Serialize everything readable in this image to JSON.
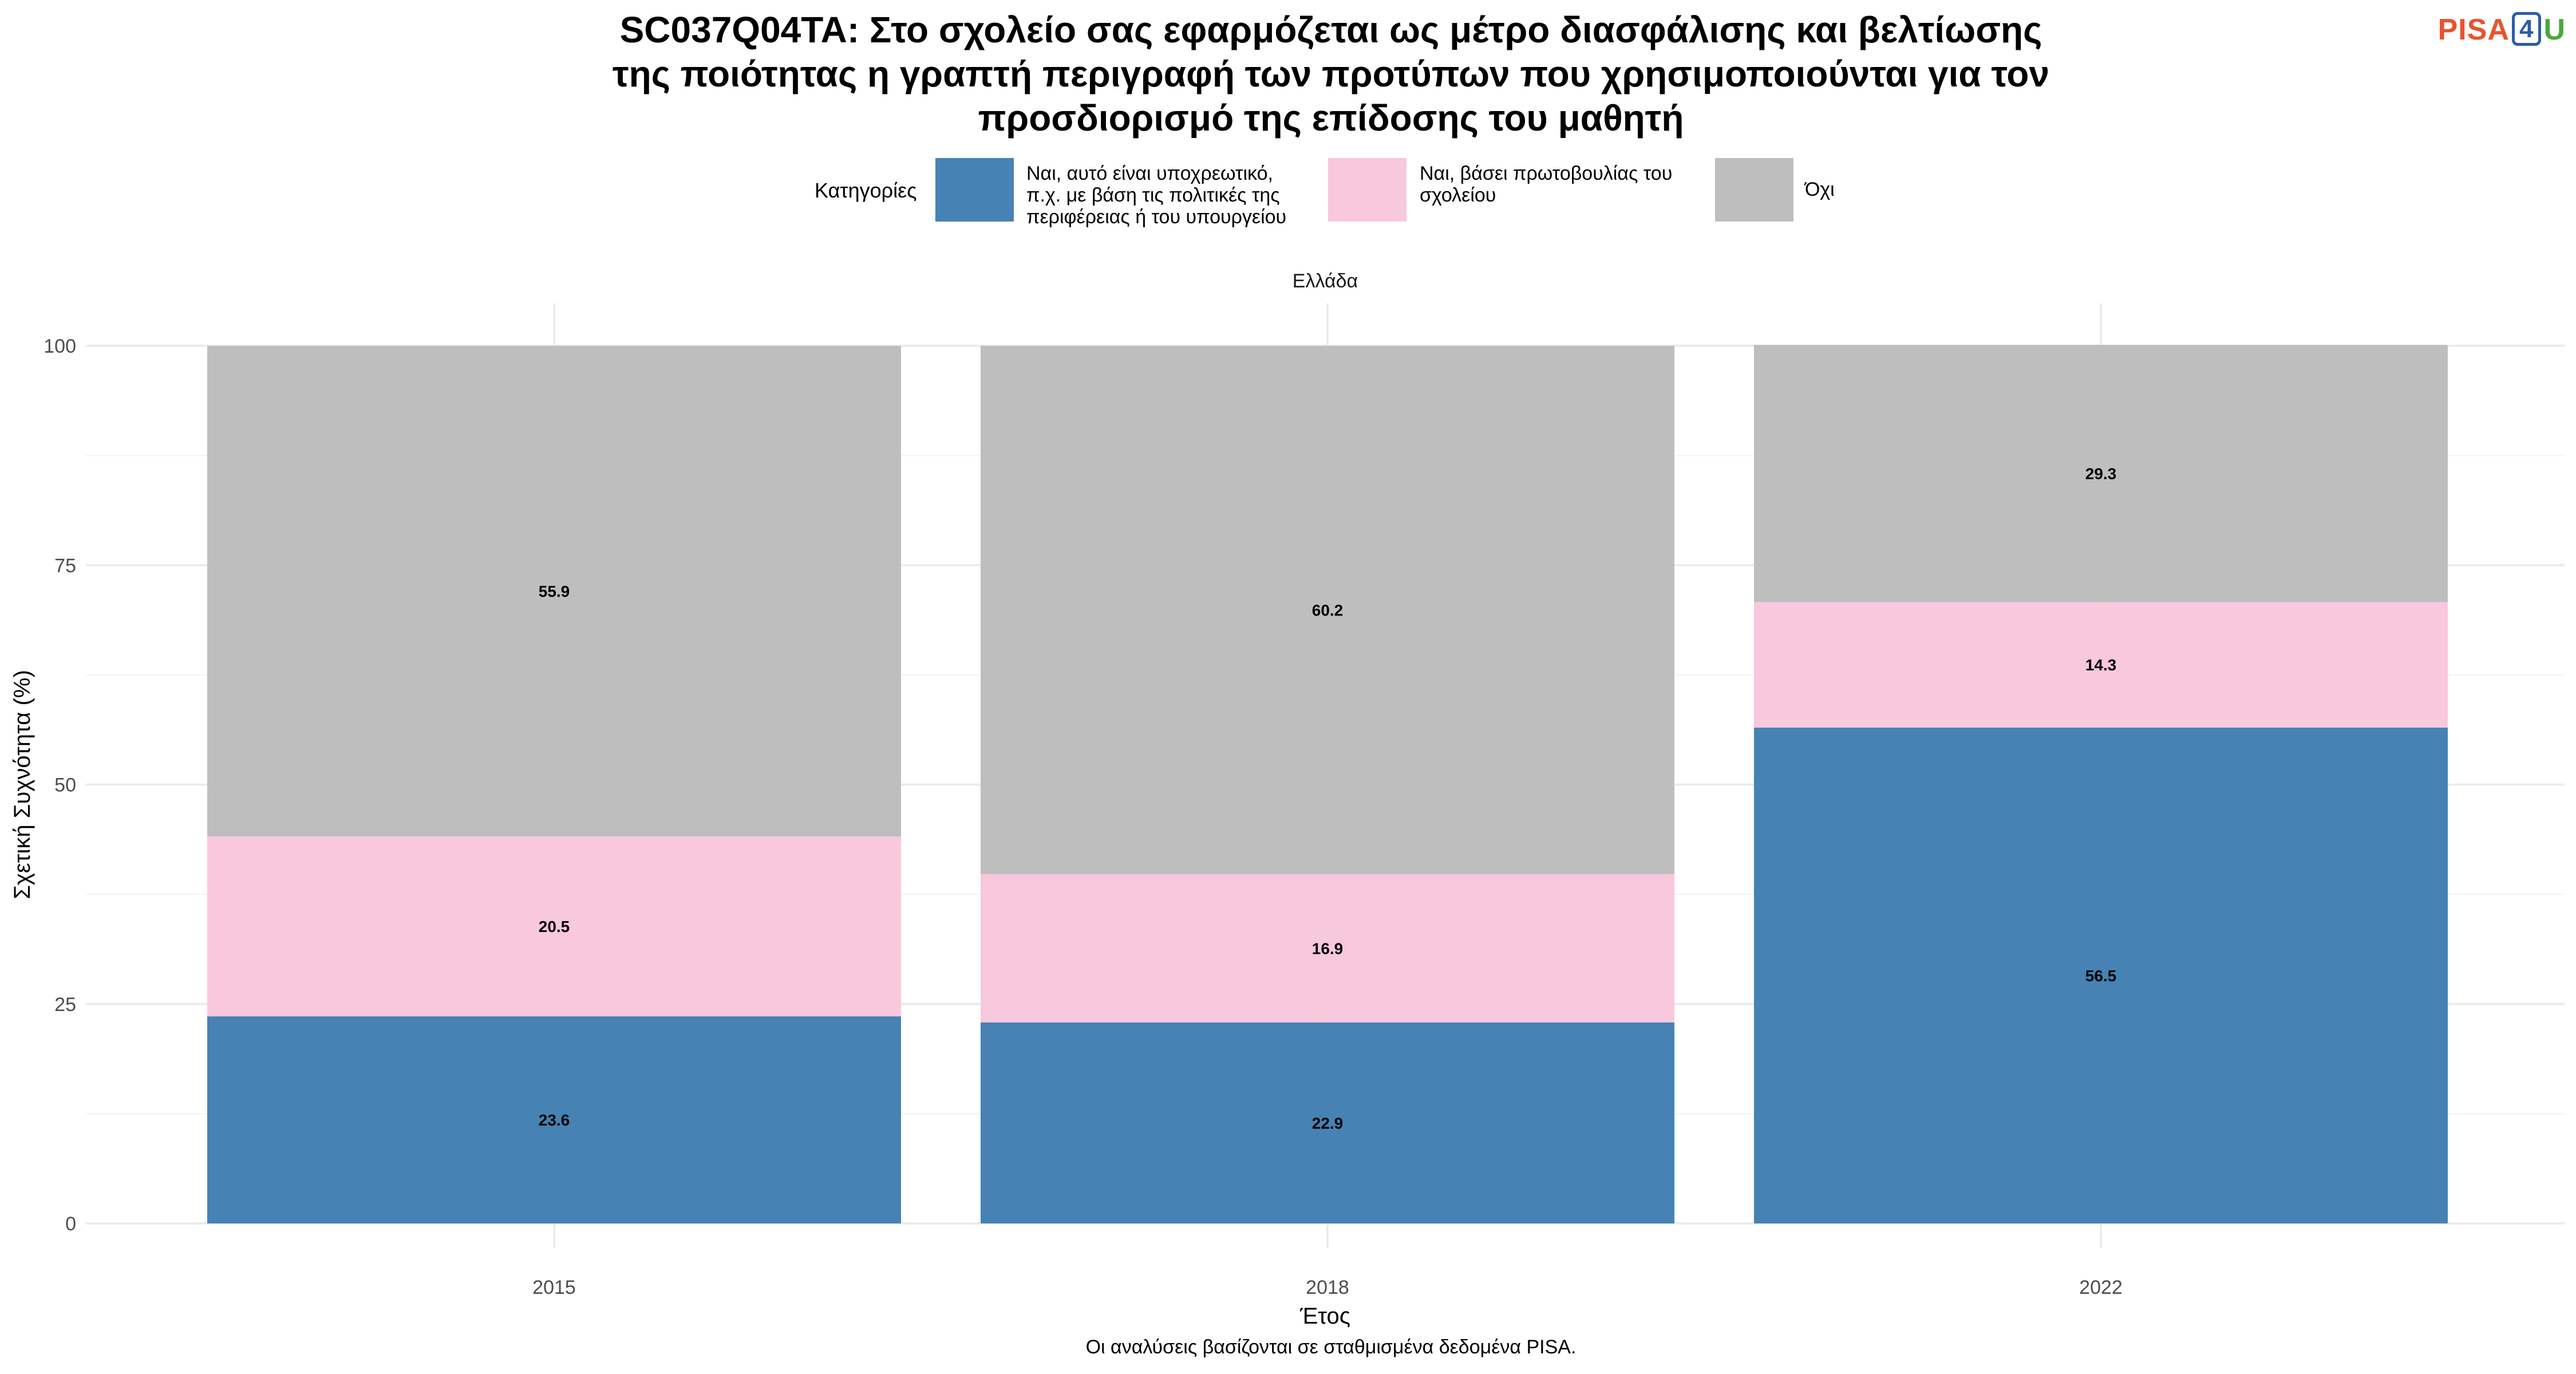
{
  "title_lines": [
    "SC037Q04TA: Στο σχολείο σας εφαρμόζεται ως μέτρο διασφάλισης και βελτίωσης",
    "της ποιότητας η γραπτή περιγραφή των προτύπων που χρησιμοποιούνται για τον",
    "προσδιορισμό της επίδοσης του μαθητή"
  ],
  "logo": {
    "part1": "PISA",
    "part2": "4",
    "part3": "U"
  },
  "legend": {
    "title": "Κατηγορίες",
    "items": [
      {
        "lines": [
          "Ναι, αυτό είναι υποχρεωτικό,",
          "π.χ. με βάση τις πολιτικές της",
          "περιφέρειας ή του υπουργείου"
        ],
        "color": "#4682b4"
      },
      {
        "lines": [
          "Ναι, βάσει πρωτοβουλίας του",
          "σχολείου"
        ],
        "color": "#f8c8dc"
      },
      {
        "lines": [
          "Όχι"
        ],
        "color": "#bebebe"
      }
    ]
  },
  "caption": "Οι αναλύσεις βασίζονται σε σταθμισμένα δεδομένα PISA.",
  "chart_data": {
    "type": "bar",
    "stacked": true,
    "facet_label": "Ελλάδα",
    "categories": [
      "2015",
      "2018",
      "2022"
    ],
    "series": [
      {
        "name": "Ναι, αυτό είναι υποχρεωτικό, π.χ. με βάση τις πολιτικές της περιφέρειας ή του υπουργείου",
        "color": "#4682b4",
        "values": [
          23.6,
          22.9,
          56.5
        ]
      },
      {
        "name": "Ναι, βάσει πρωτοβουλίας του σχολείου",
        "color": "#f8c8dc",
        "values": [
          20.5,
          16.9,
          14.3
        ]
      },
      {
        "name": "Όχι",
        "color": "#bebebe",
        "values": [
          55.9,
          60.2,
          29.3
        ]
      }
    ],
    "xlabel": "Έτος",
    "ylabel": "Σχετική Συχνότητα (%)",
    "ylim": [
      0,
      100
    ],
    "yticks": [
      0,
      25,
      50,
      75,
      100
    ],
    "grid": true,
    "legend_position": "top"
  }
}
